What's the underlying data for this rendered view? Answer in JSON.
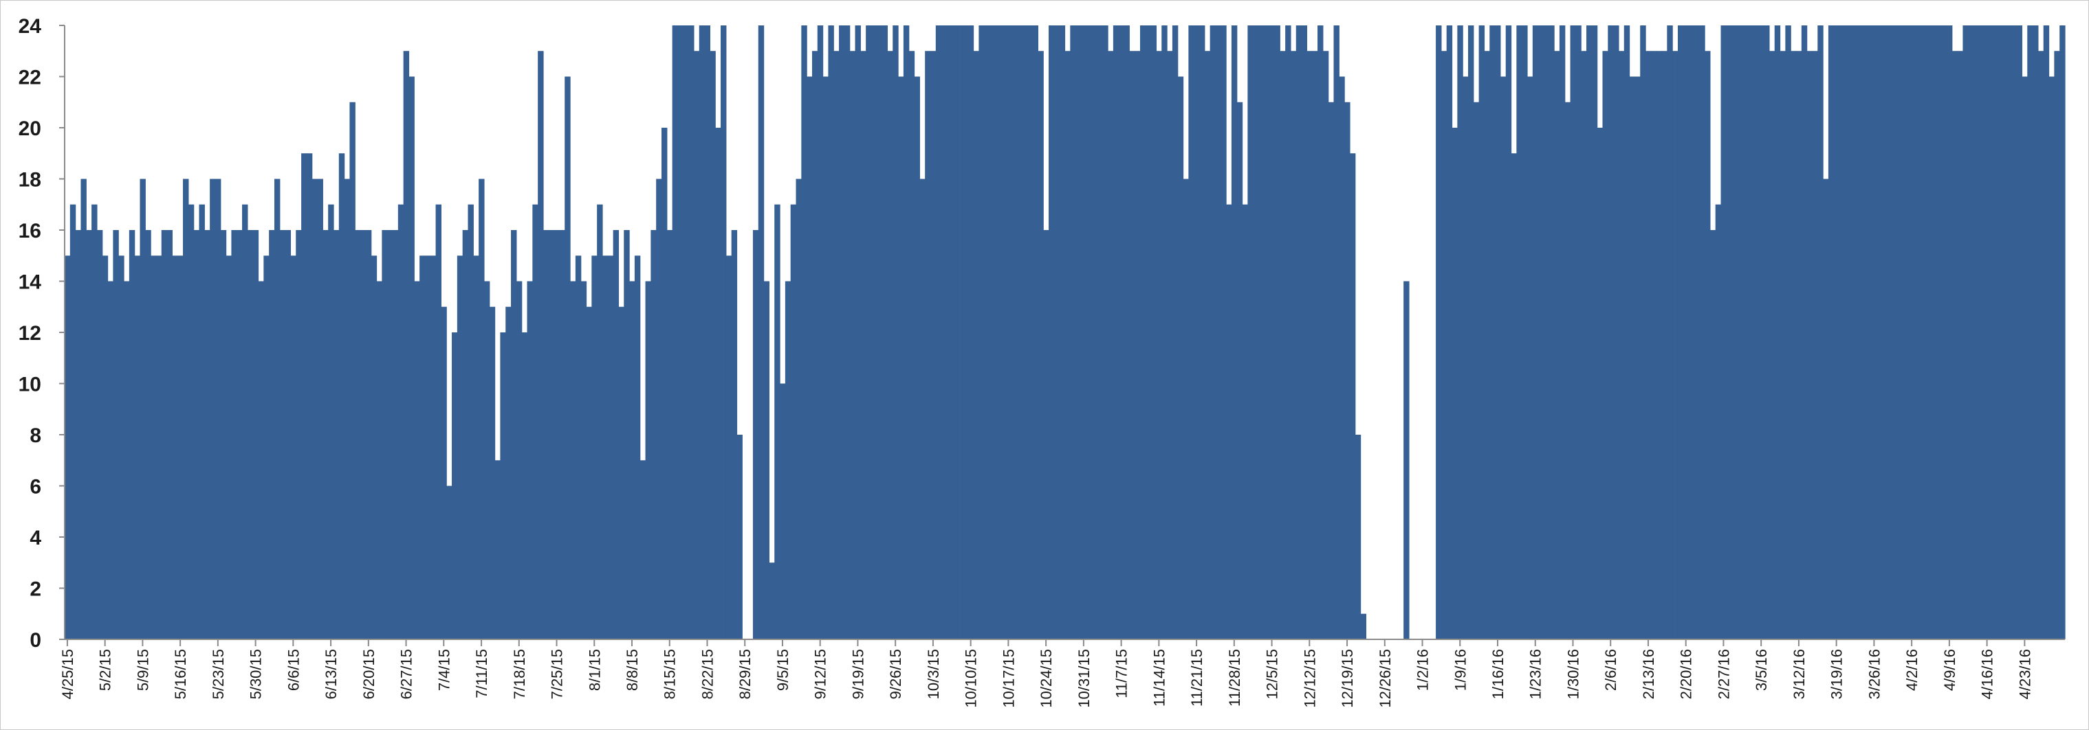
{
  "chart_data": {
    "type": "bar",
    "title": "",
    "xlabel": "",
    "ylabel": "",
    "ylim": [
      0,
      24
    ],
    "yticks": [
      0,
      2,
      4,
      6,
      8,
      10,
      12,
      14,
      16,
      18,
      20,
      22,
      24
    ],
    "grid": false,
    "legend": "none",
    "bar_color": "#365f93",
    "start_date": "4/25/15",
    "x_tick_labels": [
      "4/25/15",
      "5/2/15",
      "5/9/15",
      "5/16/15",
      "5/23/15",
      "5/30/15",
      "6/6/15",
      "6/13/15",
      "6/20/15",
      "6/27/15",
      "7/4/15",
      "7/11/15",
      "7/18/15",
      "7/25/15",
      "8/1/15",
      "8/8/15",
      "8/15/15",
      "8/22/15",
      "8/29/15",
      "9/5/15",
      "9/12/15",
      "9/19/15",
      "9/26/15",
      "10/3/15",
      "10/10/15",
      "10/17/15",
      "10/24/15",
      "10/31/15",
      "11/7/15",
      "11/14/15",
      "11/21/15",
      "11/28/15",
      "12/5/15",
      "12/12/15",
      "12/19/15",
      "12/26/15",
      "1/2/16",
      "1/9/16",
      "1/16/16",
      "1/23/16",
      "1/30/16",
      "2/6/16",
      "2/13/16",
      "2/20/16",
      "2/27/16",
      "3/5/16",
      "3/12/16",
      "3/19/16",
      "3/26/16",
      "4/2/16",
      "4/9/16",
      "4/16/16",
      "4/23/16"
    ],
    "values": [
      15,
      17,
      16,
      18,
      16,
      17,
      16,
      15,
      14,
      16,
      15,
      14,
      16,
      15,
      18,
      16,
      15,
      15,
      16,
      16,
      15,
      15,
      18,
      17,
      16,
      17,
      16,
      18,
      18,
      16,
      15,
      16,
      16,
      17,
      16,
      16,
      14,
      15,
      16,
      18,
      16,
      16,
      15,
      16,
      19,
      19,
      18,
      18,
      16,
      17,
      16,
      19,
      18,
      21,
      16,
      16,
      16,
      15,
      14,
      16,
      16,
      16,
      17,
      23,
      22,
      14,
      15,
      15,
      15,
      17,
      13,
      6,
      12,
      15,
      16,
      17,
      15,
      18,
      14,
      13,
      7,
      12,
      13,
      16,
      14,
      12,
      14,
      17,
      23,
      16,
      16,
      16,
      16,
      22,
      14,
      15,
      14,
      13,
      15,
      17,
      15,
      15,
      16,
      13,
      16,
      14,
      15,
      7,
      14,
      16,
      18,
      20,
      16,
      24,
      24,
      24,
      24,
      23,
      24,
      24,
      23,
      20,
      24,
      15,
      16,
      8,
      0,
      0,
      16,
      24,
      14,
      3,
      17,
      10,
      14,
      17,
      18,
      24,
      22,
      23,
      24,
      22,
      24,
      23,
      24,
      24,
      23,
      24,
      23,
      24,
      24,
      24,
      24,
      23,
      24,
      22,
      24,
      23,
      22,
      18,
      23,
      23,
      24,
      24,
      24,
      24,
      24,
      24,
      24,
      23,
      24,
      24,
      24,
      24,
      24,
      24,
      24,
      24,
      24,
      24,
      24,
      23,
      16,
      24,
      24,
      24,
      23,
      24,
      24,
      24,
      24,
      24,
      24,
      24,
      23,
      24,
      24,
      24,
      23,
      23,
      24,
      24,
      24,
      23,
      24,
      23,
      24,
      22,
      18,
      24,
      24,
      24,
      23,
      24,
      24,
      24,
      17,
      24,
      21,
      17,
      24,
      24,
      24,
      24,
      24,
      24,
      23,
      24,
      23,
      24,
      24,
      23,
      23,
      24,
      23,
      21,
      24,
      22,
      21,
      19,
      8,
      1,
      0,
      0,
      0,
      0,
      0,
      0,
      0,
      14,
      0,
      0,
      0,
      0,
      0,
      24,
      23,
      24,
      20,
      24,
      22,
      24,
      21,
      24,
      23,
      24,
      24,
      22,
      24,
      19,
      24,
      24,
      22,
      24,
      24,
      24,
      24,
      23,
      24,
      21,
      24,
      24,
      23,
      24,
      24,
      20,
      23,
      24,
      24,
      23,
      24,
      22,
      22,
      24,
      23,
      23,
      23,
      23,
      24,
      23,
      24,
      24,
      24,
      24,
      24,
      23,
      16,
      17,
      24,
      24,
      24,
      24,
      24,
      24,
      24,
      24,
      24,
      23,
      24,
      23,
      24,
      23,
      23,
      24,
      23,
      23,
      24,
      18,
      24,
      24,
      24,
      24,
      24,
      24,
      24,
      24,
      24,
      24,
      24,
      24,
      24,
      24,
      24,
      24,
      24,
      24,
      24,
      24,
      24,
      24,
      24,
      23,
      23,
      24,
      24,
      24,
      24,
      24,
      24,
      24,
      24,
      24,
      24,
      24,
      22,
      24,
      24,
      23,
      24,
      22,
      23,
      24
    ]
  }
}
